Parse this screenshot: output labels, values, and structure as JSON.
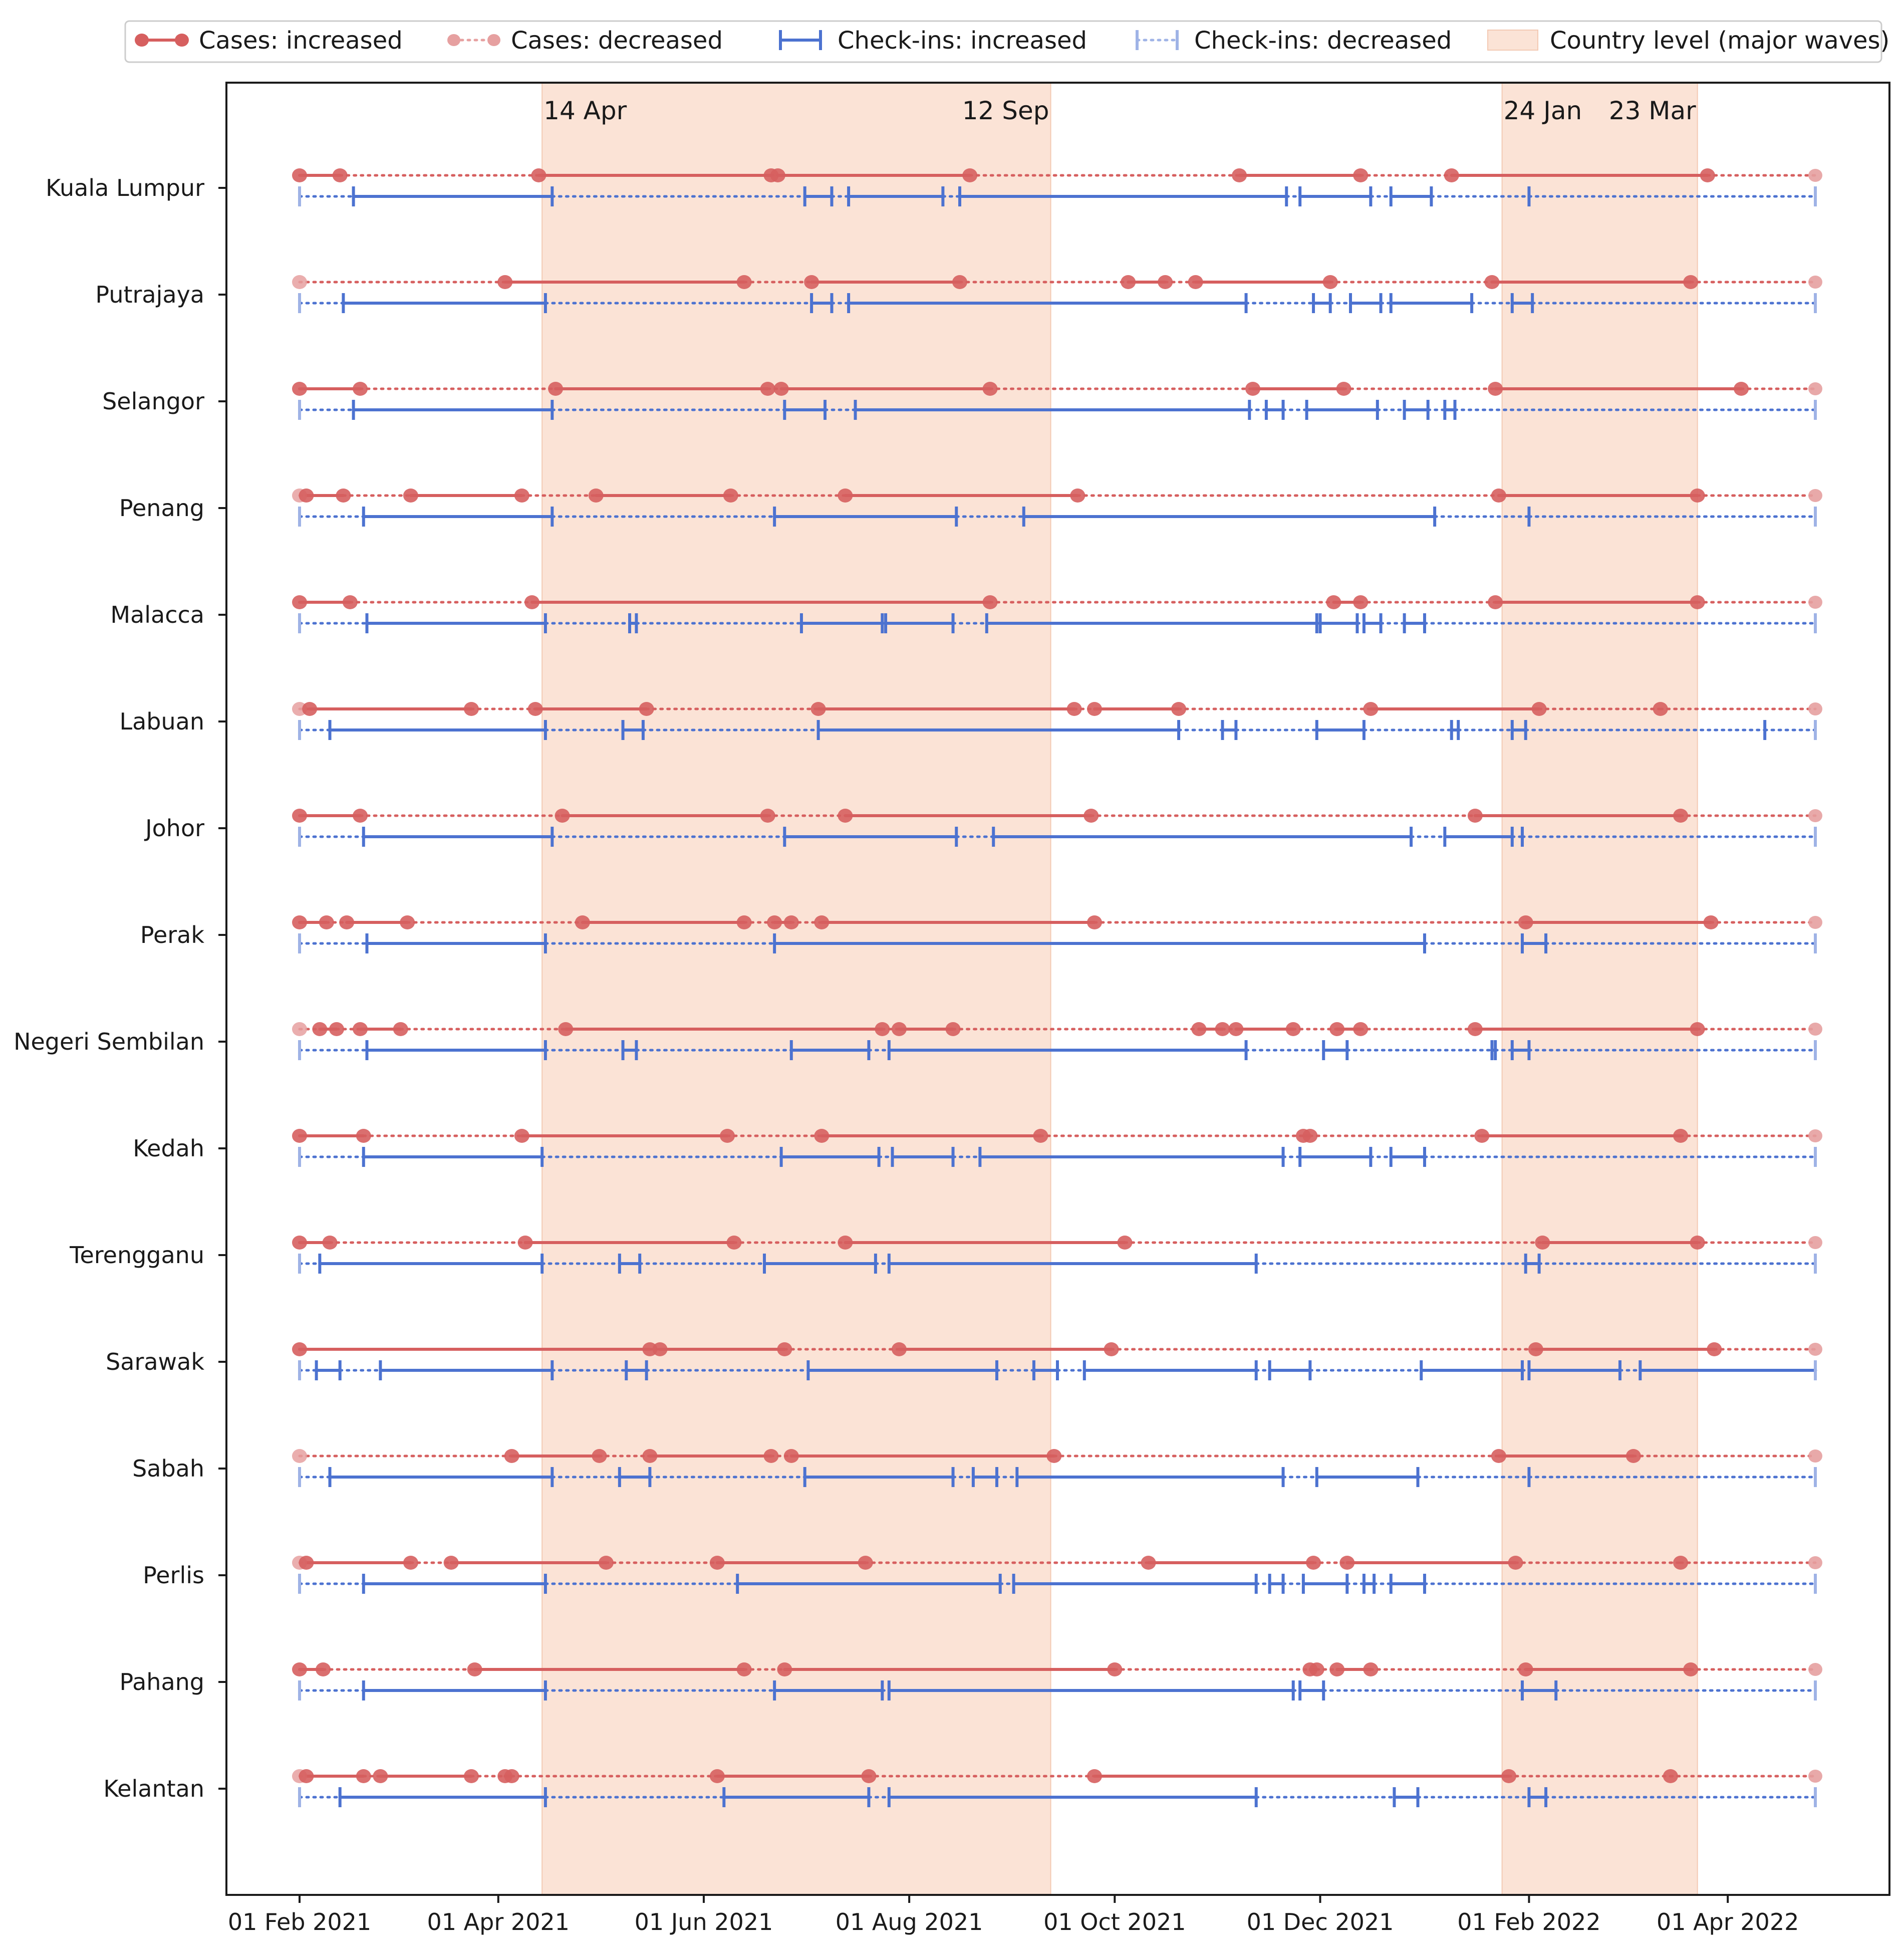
{
  "chart_data": {
    "type": "timeline",
    "xlabel": "",
    "ylabel": "",
    "x_range": [
      "2021-01-01",
      "2022-05-07"
    ],
    "x_ticks": [
      {
        "date": "2021-02-01",
        "label": "01 Feb 2021"
      },
      {
        "date": "2021-04-01",
        "label": "01 Apr 2021"
      },
      {
        "date": "2021-06-01",
        "label": "01 Jun 2021"
      },
      {
        "date": "2021-08-01",
        "label": "01 Aug 2021"
      },
      {
        "date": "2021-10-01",
        "label": "01 Oct 2021"
      },
      {
        "date": "2021-12-01",
        "label": "01 Dec 2021"
      },
      {
        "date": "2022-02-01",
        "label": "01 Feb 2022"
      },
      {
        "date": "2022-04-01",
        "label": "01 Apr 2022"
      }
    ],
    "legend": {
      "position": "top-center",
      "entries": [
        {
          "key": "cases_inc",
          "label": "Cases: increased",
          "color": "#d65f5f"
        },
        {
          "key": "cases_dec",
          "label": "Cases: decreased",
          "color": "#e6a0a0"
        },
        {
          "key": "check_inc",
          "label": "Check-ins: increased",
          "color": "#4c72d0"
        },
        {
          "key": "check_dec",
          "label": "Check-ins: decreased",
          "color": "#9fb3e6"
        },
        {
          "key": "waves",
          "label": "Country level (major waves)",
          "color": "#fbe3d6"
        }
      ]
    },
    "country_waves": [
      {
        "start": "2021-04-14",
        "end": "2021-09-12",
        "start_label": "14 Apr",
        "end_label": "12 Sep"
      },
      {
        "start": "2022-01-24",
        "end": "2022-03-23",
        "start_label": "24 Jan",
        "end_label": "23 Mar"
      }
    ],
    "range_start": "2021-02-01",
    "range_end": "2022-04-27",
    "states": [
      {
        "name": "Kuala Lumpur",
        "cases_breaks": [
          "2021-02-01",
          "2021-02-13",
          "2021-04-13",
          "2021-06-21",
          "2021-06-23",
          "2021-08-19",
          "2021-11-07",
          "2021-12-13",
          "2022-01-09",
          "2022-03-26"
        ],
        "cases_first": "inc",
        "cases_end_inc": false,
        "check_breaks": [
          "2021-02-01",
          "2021-02-17",
          "2021-04-17",
          "2021-07-01",
          "2021-07-09",
          "2021-07-14",
          "2021-08-11",
          "2021-08-16",
          "2021-11-21",
          "2021-11-25",
          "2021-12-16",
          "2021-12-22",
          "2022-01-03",
          "2022-02-01"
        ],
        "check_first": "dec",
        "check_end_inc": false
      },
      {
        "name": "Putrajaya",
        "cases_breaks": [
          "2021-02-01",
          "2021-04-03",
          "2021-06-13",
          "2021-07-03",
          "2021-08-16",
          "2021-10-05",
          "2021-10-16",
          "2021-10-25",
          "2021-12-04",
          "2022-01-21",
          "2022-03-21"
        ],
        "cases_first": "dec",
        "cases_end_inc": false,
        "check_breaks": [
          "2021-02-01",
          "2021-02-14",
          "2021-04-15",
          "2021-07-03",
          "2021-07-09",
          "2021-07-14",
          "2021-11-09",
          "2021-11-29",
          "2021-12-04",
          "2021-12-10",
          "2021-12-19",
          "2021-12-22",
          "2022-01-15",
          "2022-01-27",
          "2022-02-02"
        ],
        "check_first": "dec",
        "check_end_inc": false
      },
      {
        "name": "Selangor",
        "cases_breaks": [
          "2021-02-01",
          "2021-02-19",
          "2021-04-18",
          "2021-06-20",
          "2021-06-24",
          "2021-08-25",
          "2021-11-11",
          "2021-12-08",
          "2022-01-22",
          "2022-04-05"
        ],
        "cases_first": "inc",
        "cases_end_inc": false,
        "check_breaks": [
          "2021-02-01",
          "2021-02-17",
          "2021-04-17",
          "2021-06-25",
          "2021-07-07",
          "2021-07-16",
          "2021-11-10",
          "2021-11-15",
          "2021-11-20",
          "2021-11-27",
          "2021-12-18",
          "2021-12-26",
          "2022-01-02",
          "2022-01-07",
          "2022-01-10"
        ],
        "check_first": "dec",
        "check_end_inc": false
      },
      {
        "name": "Penang",
        "cases_breaks": [
          "2021-02-01",
          "2021-02-03",
          "2021-02-14",
          "2021-03-06",
          "2021-04-08",
          "2021-04-30",
          "2021-06-09",
          "2021-07-13",
          "2021-09-20",
          "2022-01-23",
          "2022-03-23"
        ],
        "cases_first": "dec",
        "cases_end_inc": false,
        "check_breaks": [
          "2021-02-01",
          "2021-02-20",
          "2021-04-17",
          "2021-06-22",
          "2021-08-15",
          "2021-09-04",
          "2022-01-04",
          "2022-02-01"
        ],
        "check_first": "dec",
        "check_end_inc": false
      },
      {
        "name": "Malacca",
        "cases_breaks": [
          "2021-02-01",
          "2021-02-16",
          "2021-04-11",
          "2021-08-25",
          "2021-12-05",
          "2021-12-13",
          "2022-01-22",
          "2022-03-23"
        ],
        "cases_first": "inc",
        "cases_end_inc": false,
        "check_breaks": [
          "2021-02-01",
          "2021-02-21",
          "2021-04-15",
          "2021-05-10",
          "2021-05-12",
          "2021-06-30",
          "2021-07-24",
          "2021-07-25",
          "2021-08-14",
          "2021-08-24",
          "2021-11-30",
          "2021-12-01",
          "2021-12-12",
          "2021-12-14",
          "2021-12-19",
          "2021-12-26",
          "2022-01-01"
        ],
        "check_first": "dec",
        "check_end_inc": false
      },
      {
        "name": "Labuan",
        "cases_breaks": [
          "2021-02-01",
          "2021-02-04",
          "2021-03-24",
          "2021-04-12",
          "2021-05-15",
          "2021-07-05",
          "2021-09-19",
          "2021-09-25",
          "2021-10-20",
          "2021-12-16",
          "2022-02-04",
          "2022-03-12"
        ],
        "cases_first": "dec",
        "cases_end_inc": false,
        "check_breaks": [
          "2021-02-01",
          "2021-02-10",
          "2021-04-15",
          "2021-05-08",
          "2021-05-14",
          "2021-07-05",
          "2021-10-20",
          "2021-11-02",
          "2021-11-06",
          "2021-11-30",
          "2021-12-14",
          "2022-01-09",
          "2022-01-11",
          "2022-01-27",
          "2022-01-31",
          "2022-04-12"
        ],
        "check_first": "dec",
        "check_end_inc": false
      },
      {
        "name": "Johor",
        "cases_breaks": [
          "2021-02-01",
          "2021-02-19",
          "2021-04-20",
          "2021-06-20",
          "2021-07-13",
          "2021-09-24",
          "2022-01-16",
          "2022-03-18"
        ],
        "cases_first": "inc",
        "cases_end_inc": false,
        "check_breaks": [
          "2021-02-01",
          "2021-02-20",
          "2021-04-17",
          "2021-06-25",
          "2021-08-15",
          "2021-08-26",
          "2021-12-28",
          "2022-01-07",
          "2022-01-27",
          "2022-01-30"
        ],
        "check_first": "dec",
        "check_end_inc": false
      },
      {
        "name": "Perak",
        "cases_breaks": [
          "2021-02-01",
          "2021-02-09",
          "2021-02-15",
          "2021-03-05",
          "2021-04-26",
          "2021-06-13",
          "2021-06-22",
          "2021-06-27",
          "2021-07-06",
          "2021-09-25",
          "2022-01-31",
          "2022-03-27"
        ],
        "cases_first": "inc",
        "cases_end_inc": false,
        "check_breaks": [
          "2021-02-01",
          "2021-02-21",
          "2021-04-15",
          "2021-06-22",
          "2022-01-01",
          "2022-01-30",
          "2022-02-06"
        ],
        "check_first": "dec",
        "check_end_inc": false
      },
      {
        "name": "Negeri Sembilan",
        "cases_breaks": [
          "2021-02-01",
          "2021-02-07",
          "2021-02-12",
          "2021-02-19",
          "2021-03-03",
          "2021-04-21",
          "2021-07-24",
          "2021-07-29",
          "2021-08-14",
          "2021-10-26",
          "2021-11-02",
          "2021-11-06",
          "2021-11-23",
          "2021-12-06",
          "2021-12-13",
          "2022-01-16",
          "2022-03-23"
        ],
        "cases_first": "dec",
        "cases_end_inc": false,
        "check_breaks": [
          "2021-02-01",
          "2021-02-21",
          "2021-04-15",
          "2021-05-08",
          "2021-05-12",
          "2021-06-27",
          "2021-07-20",
          "2021-07-26",
          "2021-11-09",
          "2021-12-02",
          "2021-12-09",
          "2022-01-21",
          "2022-01-22",
          "2022-01-27",
          "2022-02-01"
        ],
        "check_first": "dec",
        "check_end_inc": false
      },
      {
        "name": "Kedah",
        "cases_breaks": [
          "2021-02-01",
          "2021-02-20",
          "2021-04-08",
          "2021-06-08",
          "2021-07-06",
          "2021-09-09",
          "2021-11-26",
          "2021-11-28",
          "2022-01-18",
          "2022-03-18"
        ],
        "cases_first": "inc",
        "cases_end_inc": false,
        "check_breaks": [
          "2021-02-01",
          "2021-02-20",
          "2021-04-14",
          "2021-06-24",
          "2021-07-23",
          "2021-07-27",
          "2021-08-14",
          "2021-08-22",
          "2021-11-20",
          "2021-11-25",
          "2021-12-16",
          "2021-12-22",
          "2022-01-01"
        ],
        "check_first": "dec",
        "check_end_inc": false
      },
      {
        "name": "Terengganu",
        "cases_breaks": [
          "2021-02-01",
          "2021-02-10",
          "2021-04-09",
          "2021-06-10",
          "2021-07-13",
          "2021-10-04",
          "2022-02-05",
          "2022-03-23"
        ],
        "cases_first": "inc",
        "cases_end_inc": false,
        "check_breaks": [
          "2021-02-01",
          "2021-02-07",
          "2021-04-14",
          "2021-05-07",
          "2021-05-13",
          "2021-06-19",
          "2021-07-22",
          "2021-07-26",
          "2021-11-12",
          "2022-01-31",
          "2022-02-04"
        ],
        "check_first": "dec",
        "check_end_inc": false
      },
      {
        "name": "Sarawak",
        "cases_breaks": [
          "2021-02-01",
          "2021-05-16",
          "2021-05-19",
          "2021-06-25",
          "2021-07-29",
          "2021-09-30",
          "2022-02-03",
          "2022-03-28"
        ],
        "cases_first": "inc",
        "cases_end_inc": false,
        "check_breaks": [
          "2021-02-01",
          "2021-02-06",
          "2021-02-13",
          "2021-02-25",
          "2021-04-17",
          "2021-05-09",
          "2021-05-15",
          "2021-07-02",
          "2021-08-27",
          "2021-09-07",
          "2021-09-14",
          "2021-09-22",
          "2021-11-12",
          "2021-11-16",
          "2021-11-28",
          "2021-12-31",
          "2022-01-30",
          "2022-02-01",
          "2022-02-28",
          "2022-03-06",
          "2022-04-27"
        ],
        "check_first": "dec",
        "check_end_inc": false
      },
      {
        "name": "Sabah",
        "cases_breaks": [
          "2021-02-01",
          "2021-04-05",
          "2021-05-01",
          "2021-05-16",
          "2021-06-21",
          "2021-06-27",
          "2021-09-13",
          "2022-01-23",
          "2022-03-04"
        ],
        "cases_first": "dec",
        "cases_end_inc": false,
        "check_breaks": [
          "2021-02-01",
          "2021-02-10",
          "2021-04-17",
          "2021-05-07",
          "2021-05-16",
          "2021-07-01",
          "2021-08-14",
          "2021-08-20",
          "2021-08-27",
          "2021-09-02",
          "2021-11-20",
          "2021-11-30",
          "2021-12-30",
          "2022-02-01"
        ],
        "check_first": "dec",
        "check_end_inc": false
      },
      {
        "name": "Perlis",
        "cases_breaks": [
          "2021-02-01",
          "2021-02-03",
          "2021-03-06",
          "2021-03-18",
          "2021-05-03",
          "2021-06-05",
          "2021-07-19",
          "2021-10-11",
          "2021-11-29",
          "2021-12-09",
          "2022-01-28",
          "2022-03-18"
        ],
        "cases_first": "dec",
        "cases_end_inc": false,
        "check_breaks": [
          "2021-02-01",
          "2021-02-20",
          "2021-04-15",
          "2021-06-11",
          "2021-08-28",
          "2021-09-01",
          "2021-11-12",
          "2021-11-16",
          "2021-11-20",
          "2021-11-26",
          "2021-12-09",
          "2021-12-14",
          "2021-12-17",
          "2021-12-22",
          "2022-01-01"
        ],
        "check_first": "dec",
        "check_end_inc": false
      },
      {
        "name": "Pahang",
        "cases_breaks": [
          "2021-02-01",
          "2021-02-08",
          "2021-03-25",
          "2021-06-13",
          "2021-06-25",
          "2021-10-01",
          "2021-11-28",
          "2021-11-30",
          "2021-12-06",
          "2021-12-16",
          "2022-01-31",
          "2022-03-21"
        ],
        "cases_first": "inc",
        "cases_end_inc": false,
        "check_breaks": [
          "2021-02-01",
          "2021-02-20",
          "2021-04-15",
          "2021-06-22",
          "2021-07-24",
          "2021-07-26",
          "2021-11-23",
          "2021-11-25",
          "2021-12-02",
          "2022-01-30",
          "2022-02-09"
        ],
        "check_first": "dec",
        "check_end_inc": false
      },
      {
        "name": "Kelantan",
        "cases_breaks": [
          "2021-02-01",
          "2021-02-03",
          "2021-02-20",
          "2021-02-25",
          "2021-03-24",
          "2021-04-03",
          "2021-04-05",
          "2021-06-05",
          "2021-07-20",
          "2021-09-25",
          "2022-01-26",
          "2022-03-15"
        ],
        "cases_first": "dec",
        "cases_end_inc": false,
        "check_breaks": [
          "2021-02-01",
          "2021-02-13",
          "2021-04-15",
          "2021-06-07",
          "2021-07-20",
          "2021-07-26",
          "2021-11-12",
          "2021-12-23",
          "2021-12-30",
          "2022-02-01",
          "2022-02-06"
        ],
        "check_first": "dec",
        "check_end_inc": false
      }
    ]
  }
}
